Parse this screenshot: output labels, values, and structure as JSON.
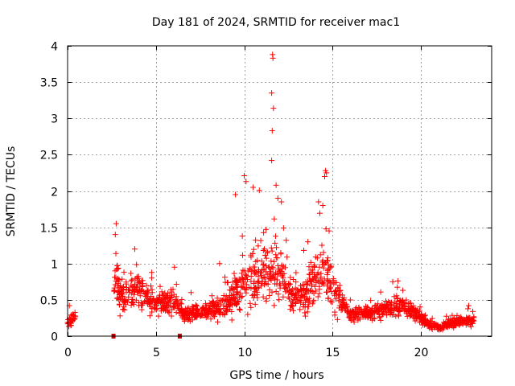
{
  "chart_data": {
    "type": "scatter",
    "title": "Day 181 of 2024, SRMTID for receiver mac1",
    "xlabel": "GPS time / hours",
    "ylabel": "SRMTID / TECUs",
    "xlim": [
      0,
      24
    ],
    "ylim": [
      0,
      4
    ],
    "x_ticks": [
      0,
      5,
      10,
      15,
      20
    ],
    "x_tick_labels": [
      "0",
      "5",
      "10",
      "15",
      "20"
    ],
    "y_ticks": [
      0,
      0.5,
      1,
      1.5,
      2,
      2.5,
      3,
      3.5,
      4
    ],
    "y_tick_labels": [
      "0",
      "0.5",
      "1",
      "1.5",
      "2",
      "2.5",
      "3",
      "3.5",
      "4"
    ],
    "grid": true,
    "marker": "plus",
    "color": "#ff0000",
    "series": [
      {
        "name": "mac1",
        "envelope": [
          {
            "t": 0.0,
            "median": 0.18,
            "spread": 0.12
          },
          {
            "t": 0.4,
            "median": 0.25,
            "spread": 0.1
          },
          {
            "t": 2.7,
            "median": 0.8,
            "spread": 0.5
          },
          {
            "t": 3.0,
            "median": 0.5,
            "spread": 0.3
          },
          {
            "t": 3.8,
            "median": 0.65,
            "spread": 0.35
          },
          {
            "t": 5.0,
            "median": 0.45,
            "spread": 0.2
          },
          {
            "t": 6.2,
            "median": 0.5,
            "spread": 0.25
          },
          {
            "t": 6.5,
            "median": 0.3,
            "spread": 0.12
          },
          {
            "t": 8.0,
            "median": 0.35,
            "spread": 0.15
          },
          {
            "t": 9.0,
            "median": 0.45,
            "spread": 0.25
          },
          {
            "t": 10.0,
            "median": 0.75,
            "spread": 0.5
          },
          {
            "t": 11.0,
            "median": 0.85,
            "spread": 0.55
          },
          {
            "t": 12.0,
            "median": 0.85,
            "spread": 0.5
          },
          {
            "t": 12.7,
            "median": 0.55,
            "spread": 0.3
          },
          {
            "t": 13.5,
            "median": 0.6,
            "spread": 0.35
          },
          {
            "t": 14.5,
            "median": 0.95,
            "spread": 0.5
          },
          {
            "t": 15.2,
            "median": 0.55,
            "spread": 0.3
          },
          {
            "t": 16.0,
            "median": 0.3,
            "spread": 0.12
          },
          {
            "t": 17.0,
            "median": 0.32,
            "spread": 0.12
          },
          {
            "t": 18.0,
            "median": 0.35,
            "spread": 0.15
          },
          {
            "t": 18.5,
            "median": 0.42,
            "spread": 0.2
          },
          {
            "t": 19.5,
            "median": 0.35,
            "spread": 0.15
          },
          {
            "t": 20.5,
            "median": 0.15,
            "spread": 0.07
          },
          {
            "t": 21.0,
            "median": 0.12,
            "spread": 0.06
          },
          {
            "t": 22.0,
            "median": 0.2,
            "spread": 0.08
          },
          {
            "t": 22.8,
            "median": 0.22,
            "spread": 0.1
          }
        ],
        "segments": [
          [
            0.0,
            0.45
          ],
          [
            2.6,
            23.0
          ]
        ],
        "peaks": [
          [
            11.6,
            3.88
          ],
          [
            11.62,
            3.83
          ],
          [
            11.55,
            3.35
          ],
          [
            11.65,
            3.14
          ],
          [
            11.58,
            2.83
          ],
          [
            11.55,
            2.42
          ],
          [
            10.0,
            2.21
          ],
          [
            10.1,
            2.13
          ],
          [
            11.8,
            2.08
          ],
          [
            14.6,
            2.28
          ],
          [
            14.65,
            2.25
          ],
          [
            14.55,
            2.2
          ],
          [
            9.5,
            1.95
          ],
          [
            10.5,
            2.05
          ],
          [
            2.75,
            1.55
          ],
          [
            2.7,
            1.4
          ],
          [
            11.9,
            1.9
          ],
          [
            12.1,
            1.85
          ],
          [
            14.2,
            1.85
          ],
          [
            14.8,
            1.45
          ],
          [
            13.6,
            1.3
          ],
          [
            3.8,
            1.2
          ],
          [
            6.05,
            0.95
          ],
          [
            8.6,
            1.0
          ],
          [
            18.4,
            0.75
          ],
          [
            18.7,
            0.76
          ],
          [
            22.7,
            0.42
          ],
          [
            0.1,
            0.42
          ]
        ],
        "gap_markers": [
          {
            "x": 2.6,
            "y": 0.0
          },
          {
            "x": 6.35,
            "y": 0.0
          }
        ]
      }
    ]
  }
}
